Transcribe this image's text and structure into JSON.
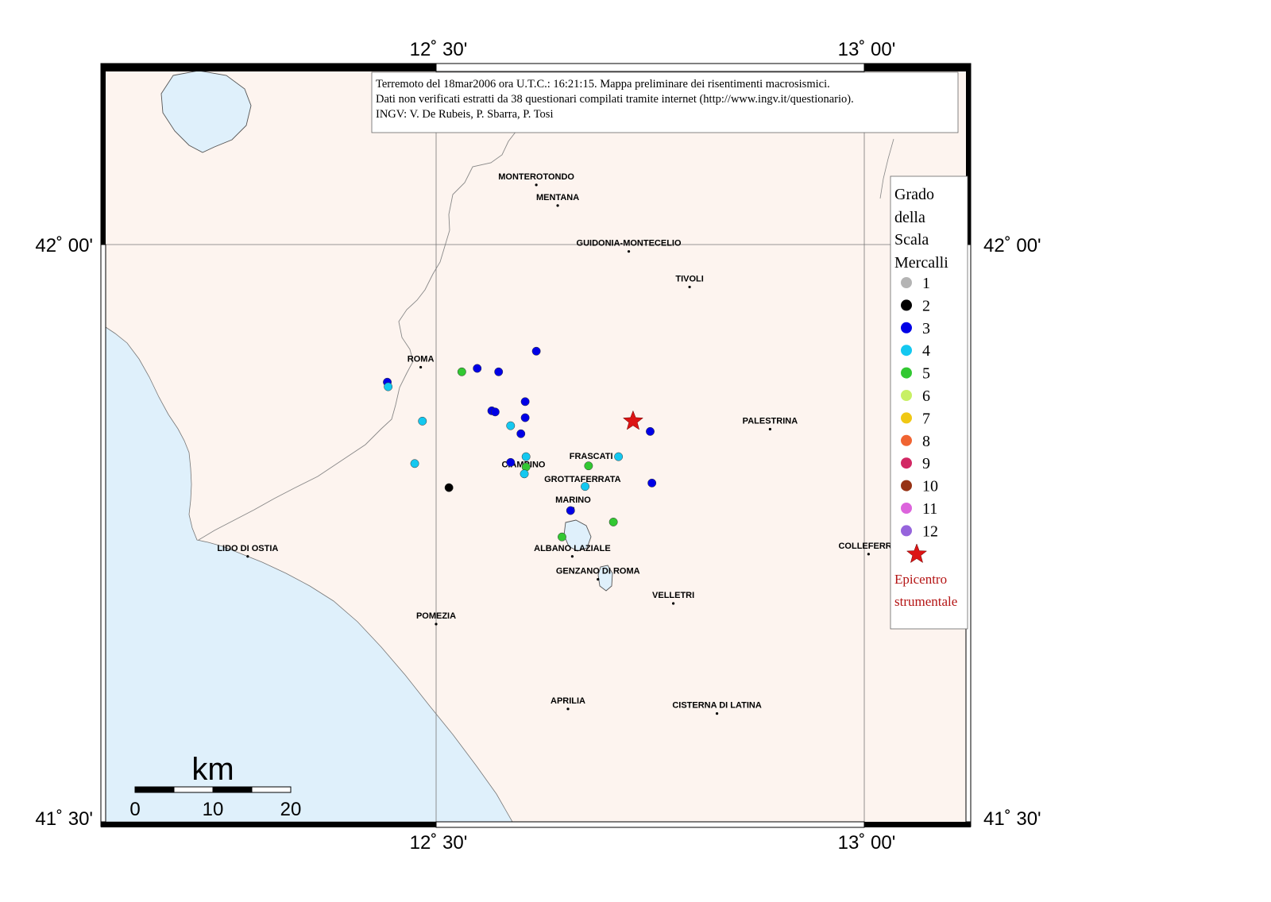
{
  "header": {
    "line1": "Terremoto del 18mar2006 ora U.T.C.: 16:21:15.  Mappa preliminare dei risentimenti macrosismici.",
    "line2": "Dati non verificati estratti da 38 questionari compilati tramite internet (http://www.ingv.it/questionario).",
    "line3": "INGV: V.  De Rubeis, P.  Sbarra, P.  Tosi"
  },
  "axes": {
    "top": [
      "12˚ 30'",
      "13˚ 00'"
    ],
    "bottom": [
      "12˚ 30'",
      "13˚ 00'"
    ],
    "left": [
      "42˚ 00'",
      "41˚ 30'"
    ],
    "right": [
      "42˚ 00'",
      "41˚ 30'"
    ]
  },
  "legend": {
    "title": [
      "Grado",
      "della",
      "Scala",
      "Mercalli"
    ],
    "items": [
      {
        "label": "1",
        "color": "#b4b4b4"
      },
      {
        "label": "2",
        "color": "#000000"
      },
      {
        "label": "3",
        "color": "#0000e6"
      },
      {
        "label": "4",
        "color": "#14c8f0"
      },
      {
        "label": "5",
        "color": "#32c832"
      },
      {
        "label": "6",
        "color": "#c8f064"
      },
      {
        "label": "7",
        "color": "#f0c814"
      },
      {
        "label": "8",
        "color": "#f06432"
      },
      {
        "label": "9",
        "color": "#d22864"
      },
      {
        "label": "10",
        "color": "#963214"
      },
      {
        "label": "11",
        "color": "#dc64dc"
      },
      {
        "label": "12",
        "color": "#9664dc"
      }
    ],
    "epicenter_label": [
      "Epicentro",
      "strumentale"
    ],
    "epicenter_color": "#dc1414"
  },
  "scale_bar": {
    "unit": "km",
    "ticks": [
      "0",
      "10",
      "20"
    ]
  },
  "cities": [
    {
      "name": "MONTEROTONDO",
      "lon": 12.617,
      "lat": 42.052
    },
    {
      "name": "MENTANA",
      "lon": 12.642,
      "lat": 42.034
    },
    {
      "name": "GUIDONIA-MONTECELIO",
      "lon": 12.725,
      "lat": 41.994
    },
    {
      "name": "TIVOLI",
      "lon": 12.796,
      "lat": 41.963
    },
    {
      "name": "ROMA",
      "lon": 12.482,
      "lat": 41.893
    },
    {
      "name": "PALESTRINA",
      "lon": 12.89,
      "lat": 41.839
    },
    {
      "name": "FRASCATI",
      "lon": 12.681,
      "lat": 41.808
    },
    {
      "name": "CIAMPINO",
      "lon": 12.602,
      "lat": 41.801
    },
    {
      "name": "GROTTAFERRATA",
      "lon": 12.671,
      "lat": 41.788
    },
    {
      "name": "MARINO",
      "lon": 12.66,
      "lat": 41.77
    },
    {
      "name": "ALBANO LAZIALE",
      "lon": 12.659,
      "lat": 41.728
    },
    {
      "name": "LIDO DI OSTIA",
      "lon": 12.28,
      "lat": 41.728
    },
    {
      "name": "COLLEFERRO",
      "lon": 13.005,
      "lat": 41.73
    },
    {
      "name": "GENZANO DI ROMA",
      "lon": 12.689,
      "lat": 41.708
    },
    {
      "name": "VELLETRI",
      "lon": 12.777,
      "lat": 41.687
    },
    {
      "name": "POMEZIA",
      "lon": 12.5,
      "lat": 41.669
    },
    {
      "name": "APRILIA",
      "lon": 12.654,
      "lat": 41.595
    },
    {
      "name": "CISTERNA DI LATINA",
      "lon": 12.828,
      "lat": 41.591
    }
  ],
  "intensity_points": [
    {
      "lon": 12.617,
      "lat": 41.907,
      "grade": 3
    },
    {
      "lon": 12.548,
      "lat": 41.892,
      "grade": 3
    },
    {
      "lon": 12.573,
      "lat": 41.889,
      "grade": 3
    },
    {
      "lon": 12.53,
      "lat": 41.889,
      "grade": 5
    },
    {
      "lon": 12.443,
      "lat": 41.88,
      "grade": 3
    },
    {
      "lon": 12.444,
      "lat": 41.876,
      "grade": 4
    },
    {
      "lon": 12.604,
      "lat": 41.863,
      "grade": 3
    },
    {
      "lon": 12.565,
      "lat": 41.855,
      "grade": 3
    },
    {
      "lon": 12.569,
      "lat": 41.854,
      "grade": 3
    },
    {
      "lon": 12.604,
      "lat": 41.849,
      "grade": 3
    },
    {
      "lon": 12.484,
      "lat": 41.846,
      "grade": 4
    },
    {
      "lon": 12.587,
      "lat": 41.842,
      "grade": 4
    },
    {
      "lon": 12.599,
      "lat": 41.835,
      "grade": 3
    },
    {
      "lon": 12.75,
      "lat": 41.837,
      "grade": 3
    },
    {
      "lon": 12.605,
      "lat": 41.815,
      "grade": 4
    },
    {
      "lon": 12.713,
      "lat": 41.815,
      "grade": 4
    },
    {
      "lon": 12.587,
      "lat": 41.81,
      "grade": 3
    },
    {
      "lon": 12.475,
      "lat": 41.809,
      "grade": 4
    },
    {
      "lon": 12.605,
      "lat": 41.806,
      "grade": 5
    },
    {
      "lon": 12.678,
      "lat": 41.807,
      "grade": 5
    },
    {
      "lon": 12.603,
      "lat": 41.8,
      "grade": 4
    },
    {
      "lon": 12.752,
      "lat": 41.792,
      "grade": 3
    },
    {
      "lon": 12.674,
      "lat": 41.789,
      "grade": 4
    },
    {
      "lon": 12.515,
      "lat": 41.788,
      "grade": 2
    },
    {
      "lon": 12.657,
      "lat": 41.768,
      "grade": 3
    },
    {
      "lon": 12.707,
      "lat": 41.758,
      "grade": 5
    },
    {
      "lon": 12.647,
      "lat": 41.745,
      "grade": 5
    }
  ],
  "epicenter": {
    "lon": 12.73,
    "lat": 41.846
  }
}
